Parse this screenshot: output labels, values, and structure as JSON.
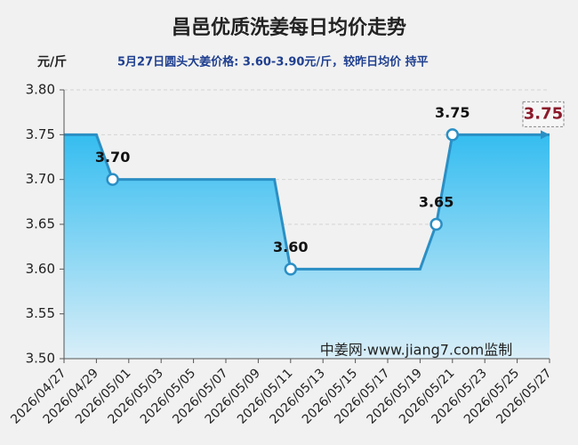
{
  "chart_data": {
    "type": "line",
    "title": "昌邑优质洗姜每日均价走势",
    "y_label": "元/斤",
    "subtitle": "5月27日圆头大姜价格: 3.60-3.90元/斤，较昨日均价 持平",
    "annotation": "中姜网·www.jiang7.com监制",
    "categories": [
      "2026/04/27",
      null,
      "2026/04/29",
      null,
      "2026/05/01",
      null,
      "2026/05/03",
      null,
      "2026/05/05",
      null,
      "2026/05/07",
      null,
      "2026/05/09",
      null,
      "2026/05/11",
      null,
      "2026/05/13",
      null,
      "2026/05/15",
      null,
      "2026/05/17",
      null,
      "2026/05/19",
      null,
      "2026/05/21",
      null,
      "2026/05/23",
      null,
      "2026/05/25",
      null,
      "2026/05/27"
    ],
    "values": [
      3.75,
      3.75,
      3.75,
      3.7,
      3.7,
      3.7,
      3.7,
      3.7,
      3.7,
      3.7,
      3.7,
      3.7,
      3.7,
      3.7,
      3.6,
      3.6,
      3.6,
      3.6,
      3.6,
      3.6,
      3.6,
      3.6,
      3.6,
      3.65,
      3.75,
      3.75,
      3.75,
      3.75,
      3.75,
      3.75,
      3.75
    ],
    "value_labels": [
      null,
      null,
      null,
      "3.70",
      null,
      null,
      null,
      null,
      null,
      null,
      null,
      null,
      null,
      null,
      "3.60",
      null,
      null,
      null,
      null,
      null,
      null,
      null,
      null,
      "3.65",
      "3.75",
      null,
      null,
      null,
      null,
      null,
      "3.75"
    ],
    "color": "#2b8fc4",
    "ylim": [
      3.5,
      3.8
    ],
    "yticks": [
      {
        "value": 3.5,
        "label": "3.50"
      },
      {
        "value": 3.55,
        "label": "3.55"
      },
      {
        "value": 3.6,
        "label": "3.60"
      },
      {
        "value": 3.65,
        "label": "3.65"
      },
      {
        "value": 3.7,
        "label": "3.70"
      },
      {
        "value": 3.75,
        "label": "3.75"
      },
      {
        "value": 3.8,
        "label": "3.80"
      }
    ],
    "grid": true
  }
}
